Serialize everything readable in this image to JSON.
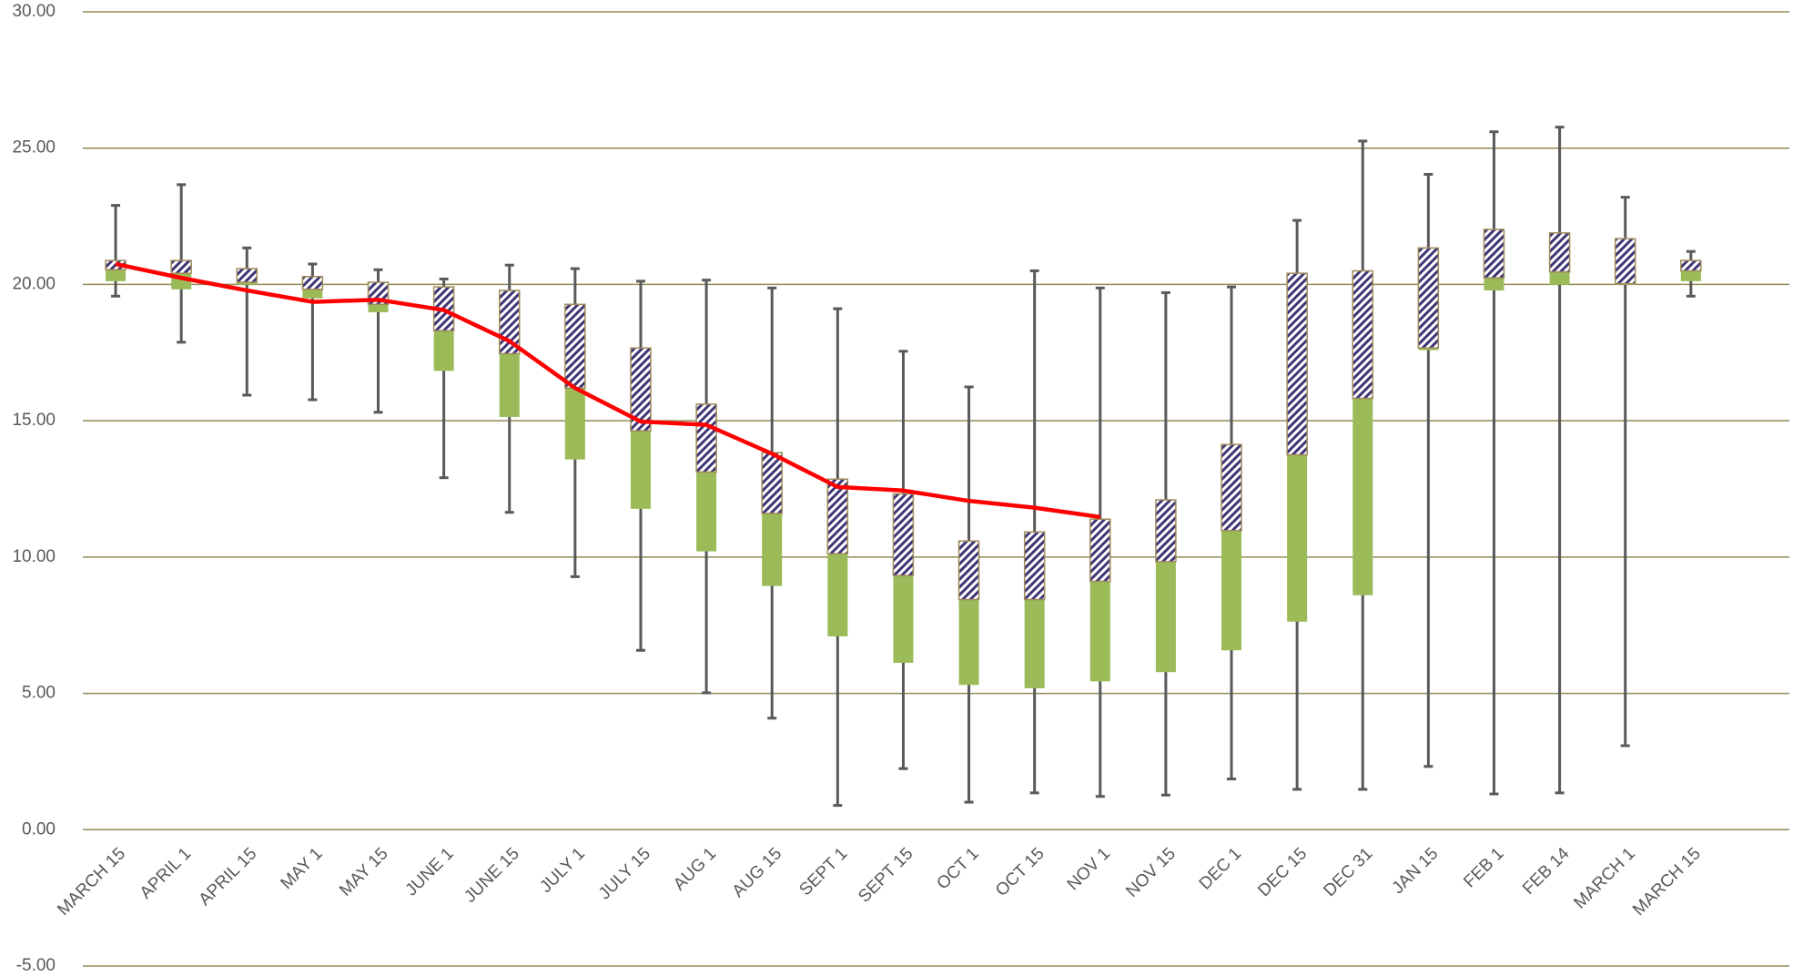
{
  "chart_data": {
    "type": "box",
    "categories": [
      "MARCH 15",
      "APRIL 1",
      "APRIL 15",
      "MAY 1",
      "MAY 15",
      "JUNE 1",
      "JUNE 15",
      "JULY 1",
      "JULY 15",
      "AUG 1",
      "AUG 15",
      "SEPT 1",
      "SEPT 15",
      "OCT 1",
      "OCT 15",
      "NOV 1",
      "NOV 15",
      "DEC 1",
      "DEC 15",
      "DEC 31",
      "JAN 15",
      "FEB 1",
      "FEB 14",
      "MARCH 1",
      "MARCH 15"
    ],
    "min": [
      19.57,
      17.88,
      15.94,
      15.77,
      15.31,
      12.91,
      11.64,
      9.28,
      6.58,
      5.02,
      4.09,
      0.89,
      2.24,
      1.01,
      1.35,
      1.22,
      1.27,
      1.86,
      1.48,
      1.48,
      2.32,
      1.31,
      1.35,
      3.08,
      19.57
    ],
    "q1": [
      20.12,
      19.82,
      19.99,
      19.49,
      18.98,
      16.83,
      15.14,
      13.58,
      11.77,
      10.21,
      8.94,
      7.09,
      6.12,
      5.31,
      5.19,
      5.44,
      5.78,
      6.58,
      7.63,
      8.6,
      17.59,
      19.78,
      19.99,
      19.99,
      20.12
    ],
    "median": [
      20.54,
      20.41,
      20.08,
      19.82,
      19.27,
      18.3,
      17.46,
      16.2,
      14.63,
      13.12,
      11.6,
      10.12,
      9.32,
      8.44,
      8.44,
      9.11,
      9.83,
      10.97,
      13.75,
      15.82,
      17.67,
      20.24,
      20.46,
      20.03,
      20.5
    ],
    "q3": [
      20.88,
      20.88,
      20.58,
      20.29,
      20.08,
      19.91,
      19.78,
      19.27,
      17.67,
      15.61,
      13.83,
      12.86,
      12.32,
      10.59,
      10.92,
      11.39,
      12.1,
      14.13,
      20.41,
      20.5,
      21.34,
      22.02,
      21.89,
      21.68,
      20.88
    ],
    "max": [
      22.9,
      23.66,
      21.34,
      20.75,
      20.54,
      20.2,
      20.71,
      20.58,
      20.12,
      20.16,
      19.87,
      19.11,
      17.55,
      16.24,
      20.5,
      19.87,
      19.7,
      19.91,
      22.35,
      25.26,
      24.04,
      25.6,
      25.77,
      23.2,
      21.21
    ],
    "line": [
      20.75,
      20.24,
      19.78,
      19.36,
      19.44,
      19.06,
      17.92,
      16.2,
      14.97,
      14.85,
      13.79,
      12.57,
      12.44,
      12.06,
      11.81,
      11.47,
      null,
      null,
      null,
      null,
      null,
      null,
      null,
      null,
      null
    ],
    "lower_color": "#9bbb59",
    "upper_color": "#3f3577",
    "whisker_color": "#595959",
    "line_color": "#ff0000",
    "ylim": [
      -5,
      30
    ],
    "yticks": [
      {
        "value": -5,
        "label": "-5.00"
      },
      {
        "value": 0,
        "label": "0.00"
      },
      {
        "value": 5,
        "label": "5.00"
      },
      {
        "value": 10,
        "label": "10.00"
      },
      {
        "value": 15,
        "label": "15.00"
      },
      {
        "value": 20,
        "label": "20.00"
      },
      {
        "value": 25,
        "label": "25.00"
      },
      {
        "value": 30,
        "label": "30.00"
      }
    ],
    "grid": true
  }
}
